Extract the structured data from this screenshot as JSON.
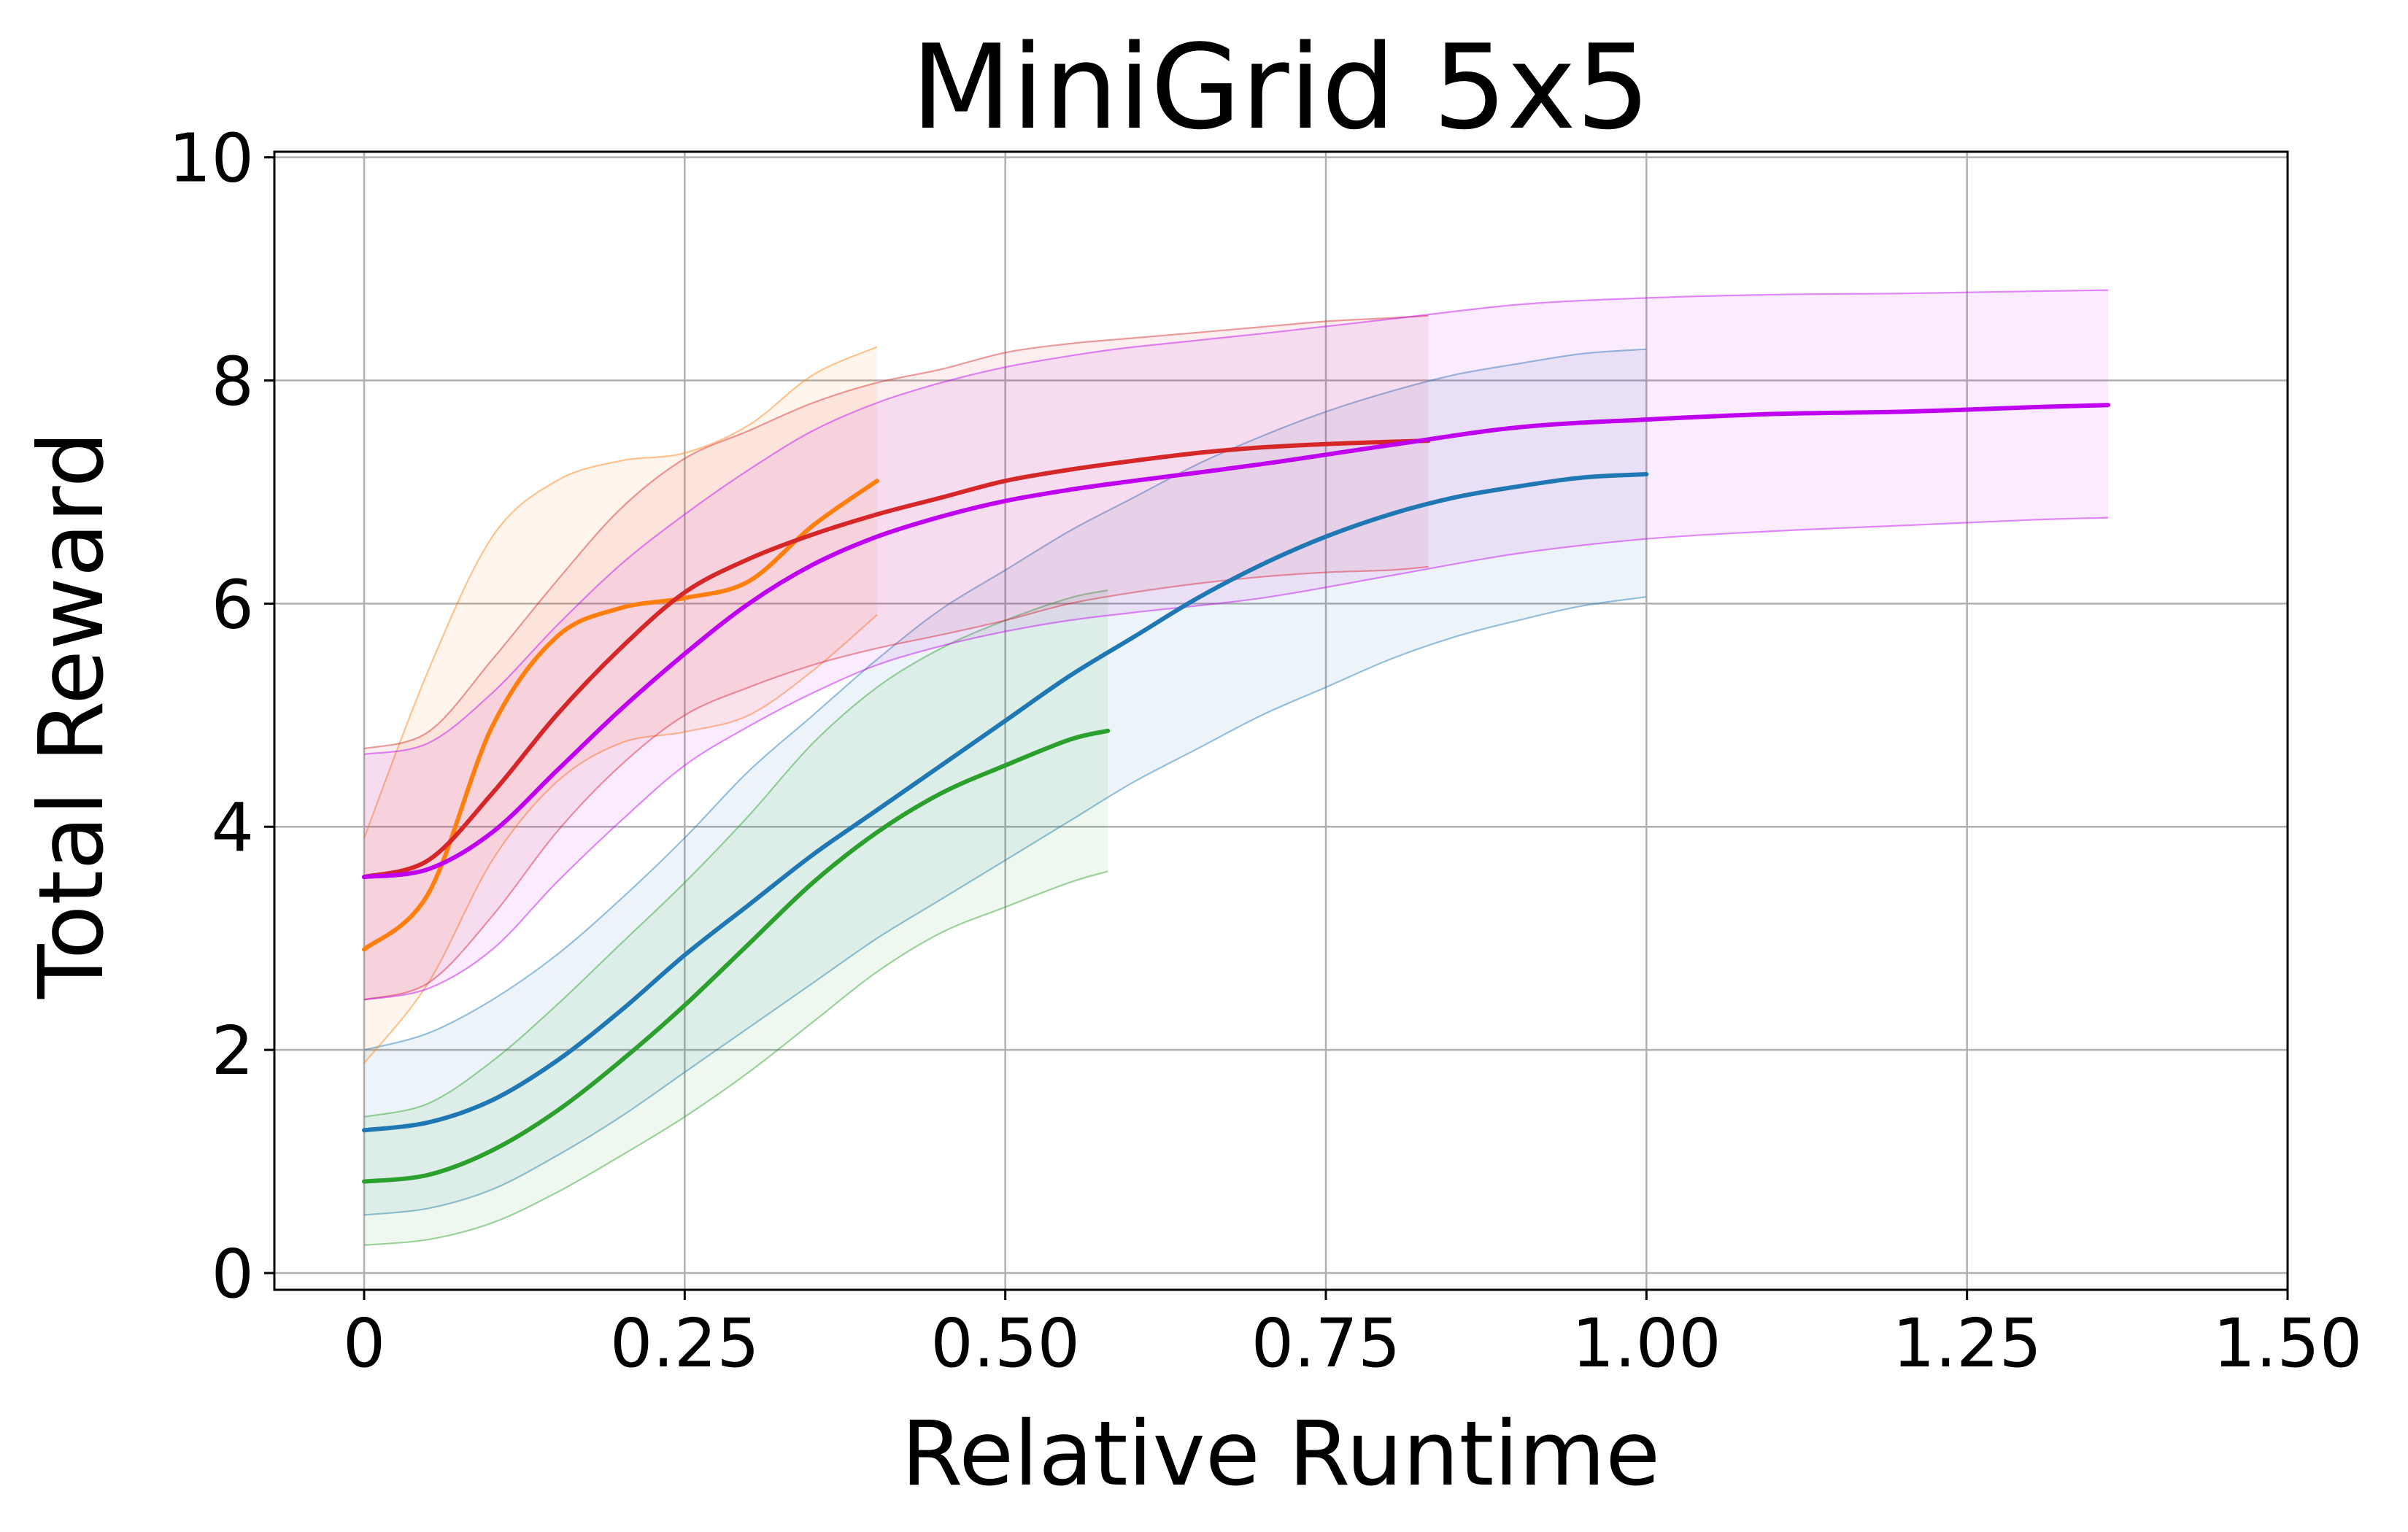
{
  "chart_data": {
    "type": "line",
    "title": "MiniGrid 5x5",
    "xlabel": "Relative Runtime",
    "ylabel": "Total Reward",
    "xlim": [
      -0.07,
      1.5
    ],
    "ylim": [
      -0.15,
      10.05
    ],
    "xticks": [
      0,
      0.25,
      0.5,
      0.75,
      1.0,
      1.25,
      1.5
    ],
    "xtick_labels": [
      "0",
      "0.25",
      "0.50",
      "0.75",
      "1.00",
      "1.25",
      "1.50"
    ],
    "yticks": [
      0,
      2,
      4,
      6,
      8,
      10
    ],
    "ytick_labels": [
      "0",
      "2",
      "4",
      "6",
      "8",
      "10"
    ],
    "grid": true,
    "legend": "none",
    "series": [
      {
        "color": "#1f77b4",
        "x": [
          0,
          0.05,
          0.1,
          0.15,
          0.2,
          0.25,
          0.3,
          0.35,
          0.4,
          0.45,
          0.5,
          0.55,
          0.6,
          0.65,
          0.7,
          0.75,
          0.8,
          0.85,
          0.9,
          0.95,
          1.0
        ],
        "y": [
          1.28,
          1.35,
          1.55,
          1.9,
          2.35,
          2.85,
          3.3,
          3.75,
          4.15,
          4.55,
          4.95,
          5.35,
          5.7,
          6.05,
          6.35,
          6.6,
          6.8,
          6.95,
          7.05,
          7.13,
          7.16
        ],
        "lower": [
          0.52,
          0.58,
          0.75,
          1.05,
          1.4,
          1.8,
          2.2,
          2.6,
          3.0,
          3.35,
          3.7,
          4.05,
          4.4,
          4.7,
          5.0,
          5.25,
          5.5,
          5.7,
          5.85,
          5.98,
          6.06
        ],
        "upper": [
          2.0,
          2.15,
          2.45,
          2.85,
          3.35,
          3.9,
          4.5,
          5.0,
          5.5,
          5.95,
          6.3,
          6.65,
          6.95,
          7.25,
          7.5,
          7.72,
          7.9,
          8.05,
          8.15,
          8.24,
          8.28
        ]
      },
      {
        "color": "#2ca02c",
        "x": [
          0,
          0.05,
          0.1,
          0.15,
          0.2,
          0.25,
          0.3,
          0.35,
          0.4,
          0.45,
          0.5,
          0.55,
          0.58
        ],
        "y": [
          0.82,
          0.88,
          1.1,
          1.45,
          1.9,
          2.4,
          2.95,
          3.5,
          3.95,
          4.3,
          4.55,
          4.78,
          4.86
        ],
        "lower": [
          0.25,
          0.3,
          0.45,
          0.72,
          1.05,
          1.4,
          1.8,
          2.25,
          2.7,
          3.05,
          3.28,
          3.5,
          3.6
        ],
        "upper": [
          1.4,
          1.52,
          1.9,
          2.4,
          2.95,
          3.5,
          4.1,
          4.75,
          5.25,
          5.6,
          5.85,
          6.05,
          6.12
        ]
      },
      {
        "color": "#ff7f0e",
        "x": [
          0,
          0.05,
          0.1,
          0.15,
          0.2,
          0.25,
          0.3,
          0.35,
          0.4
        ],
        "y": [
          2.9,
          3.4,
          4.9,
          5.7,
          5.96,
          6.05,
          6.2,
          6.7,
          7.1
        ],
        "lower": [
          1.88,
          2.6,
          3.7,
          4.4,
          4.75,
          4.85,
          5.0,
          5.4,
          5.9
        ],
        "upper": [
          3.9,
          5.4,
          6.6,
          7.1,
          7.28,
          7.35,
          7.6,
          8.05,
          8.3
        ]
      },
      {
        "color": "#d62728",
        "x": [
          0,
          0.05,
          0.1,
          0.15,
          0.2,
          0.25,
          0.3,
          0.35,
          0.4,
          0.45,
          0.5,
          0.55,
          0.6,
          0.65,
          0.7,
          0.75,
          0.8,
          0.83
        ],
        "y": [
          3.55,
          3.7,
          4.3,
          5.0,
          5.6,
          6.1,
          6.4,
          6.62,
          6.8,
          6.95,
          7.1,
          7.2,
          7.28,
          7.35,
          7.4,
          7.43,
          7.45,
          7.46
        ],
        "lower": [
          2.45,
          2.6,
          3.2,
          3.95,
          4.55,
          5.0,
          5.25,
          5.45,
          5.6,
          5.72,
          5.85,
          6.0,
          6.1,
          6.18,
          6.24,
          6.28,
          6.3,
          6.33
        ],
        "upper": [
          4.7,
          4.85,
          5.5,
          6.2,
          6.85,
          7.3,
          7.55,
          7.8,
          7.98,
          8.1,
          8.25,
          8.33,
          8.38,
          8.43,
          8.48,
          8.53,
          8.56,
          8.58
        ]
      },
      {
        "color": "#bf00f0",
        "x": [
          0,
          0.05,
          0.1,
          0.15,
          0.2,
          0.25,
          0.3,
          0.35,
          0.4,
          0.45,
          0.5,
          0.55,
          0.6,
          0.7,
          0.8,
          0.9,
          1.0,
          1.1,
          1.2,
          1.3,
          1.36
        ],
        "y": [
          3.55,
          3.62,
          3.95,
          4.5,
          5.05,
          5.55,
          6.0,
          6.35,
          6.6,
          6.78,
          6.92,
          7.02,
          7.1,
          7.25,
          7.42,
          7.58,
          7.65,
          7.7,
          7.72,
          7.76,
          7.78
        ],
        "lower": [
          2.45,
          2.55,
          2.9,
          3.5,
          4.05,
          4.55,
          4.9,
          5.2,
          5.45,
          5.62,
          5.75,
          5.85,
          5.92,
          6.05,
          6.25,
          6.45,
          6.58,
          6.65,
          6.7,
          6.75,
          6.77
        ],
        "upper": [
          4.65,
          4.75,
          5.2,
          5.8,
          6.35,
          6.8,
          7.2,
          7.55,
          7.8,
          7.98,
          8.12,
          8.22,
          8.3,
          8.42,
          8.55,
          8.68,
          8.74,
          8.77,
          8.78,
          8.8,
          8.81
        ]
      }
    ]
  }
}
